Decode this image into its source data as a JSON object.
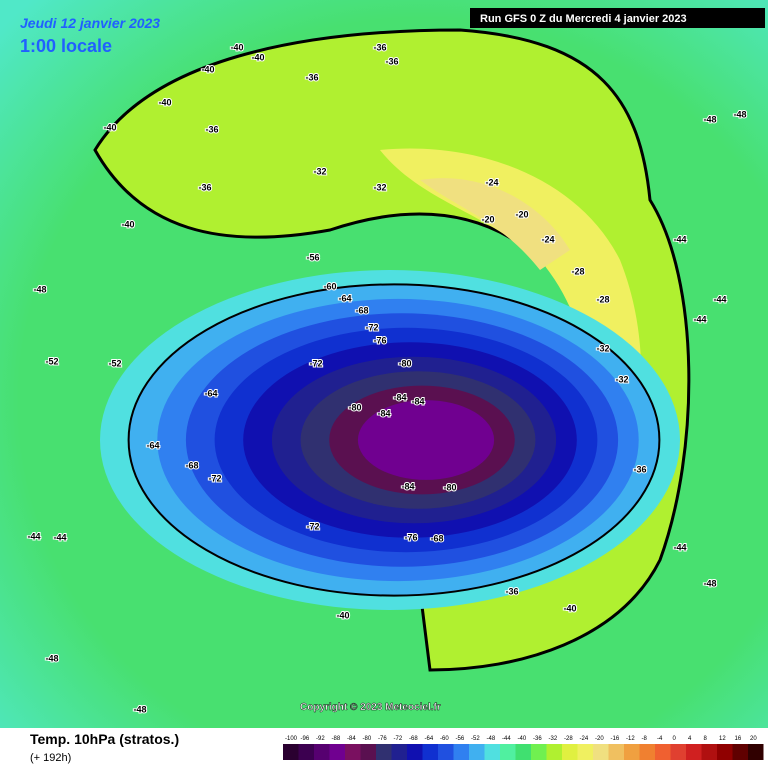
{
  "header": {
    "date": "Jeudi 12 janvier 2023",
    "time": "1:00 locale",
    "run": "Run GFS 0 Z du Mercredi 4 janvier 2023"
  },
  "copyright": "Copyright © 2023 Meteociel.fr",
  "footer": {
    "title": "Temp. 10hPa (stratos.)",
    "lead": "(+ 192h)"
  },
  "color_scale": {
    "labels": [
      -100,
      -96,
      -92,
      -88,
      -84,
      -80,
      -76,
      -72,
      -68,
      -64,
      -60,
      -56,
      -52,
      -48,
      -44,
      -40,
      -36,
      -32,
      -28,
      -24,
      -20,
      -16,
      -12,
      -8,
      -4,
      0,
      4,
      8,
      12,
      16,
      20
    ],
    "colors": [
      "#2a0030",
      "#3c0050",
      "#560070",
      "#700090",
      "#7a1060",
      "#5a1050",
      "#303070",
      "#202090",
      "#1010b0",
      "#1030d0",
      "#2050e0",
      "#3080f0",
      "#40b0f0",
      "#50e0e0",
      "#50f0a0",
      "#40e070",
      "#70f050",
      "#b0f030",
      "#e0f040",
      "#f0f060",
      "#f0e080",
      "#f0c060",
      "#f0a040",
      "#f08030",
      "#f06030",
      "#e04030",
      "#d02020",
      "#b01010",
      "#900000",
      "#600000",
      "#300000"
    ]
  },
  "map_labels": [
    "-40",
    "-40",
    "-36",
    "-36",
    "-40",
    "-40",
    "-40",
    "-36",
    "-36",
    "-40",
    "-36",
    "-32",
    "-32",
    "-24",
    "-20",
    "-20",
    "-24",
    "-28",
    "-28",
    "-32",
    "-32",
    "-36",
    "-44",
    "-44",
    "-48",
    "-48",
    "-52",
    "-56",
    "-60",
    "-64",
    "-68",
    "-72",
    "-76",
    "-80",
    "-84",
    "-84",
    "-84",
    "-80",
    "-80",
    "-84",
    "-76",
    "-68",
    "-72",
    "-72",
    "-64",
    "-64",
    "-68",
    "-72",
    "-40",
    "-44",
    "-44",
    "-48",
    "-48",
    "-36",
    "-40",
    "-48",
    "-44",
    "-52",
    "-48",
    "-44"
  ]
}
